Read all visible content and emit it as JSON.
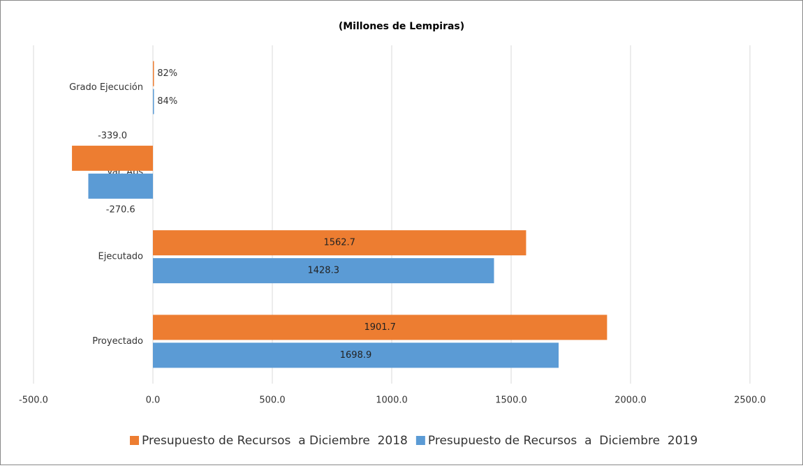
{
  "chart_data": {
    "type": "barh",
    "title": "(Millones de Lempiras)",
    "categories": [
      "Grado Ejecución",
      "Var. Abs",
      "Ejecutado",
      "Proyectado"
    ],
    "series": [
      {
        "name": "Presupuesto de Recursos  a Diciembre  2018",
        "color": "#ed7d31",
        "values": [
          0.82,
          -339.0,
          1562.7,
          1901.7
        ],
        "value_labels": [
          "82%",
          "-339.0",
          "1562.7",
          "1901.7"
        ]
      },
      {
        "name": "Presupuesto de Recursos  a  Diciembre  2019",
        "color": "#5b9bd5",
        "values": [
          0.84,
          -270.6,
          1428.3,
          1698.9
        ],
        "value_labels": [
          "84%",
          "-270.6",
          "1428.3",
          "1698.9"
        ]
      }
    ],
    "xlim": [
      -500,
      2500
    ],
    "xticks": [
      {
        "value": -500,
        "label": "-500.0"
      },
      {
        "value": 0,
        "label": "0.0"
      },
      {
        "value": 500,
        "label": "500.0"
      },
      {
        "value": 1000,
        "label": "1000.0"
      },
      {
        "value": 1500,
        "label": "1500.0"
      },
      {
        "value": 2000,
        "label": "2000.0"
      },
      {
        "value": 2500,
        "label": "2500.0"
      }
    ],
    "grid": true,
    "legend": "bottom"
  }
}
